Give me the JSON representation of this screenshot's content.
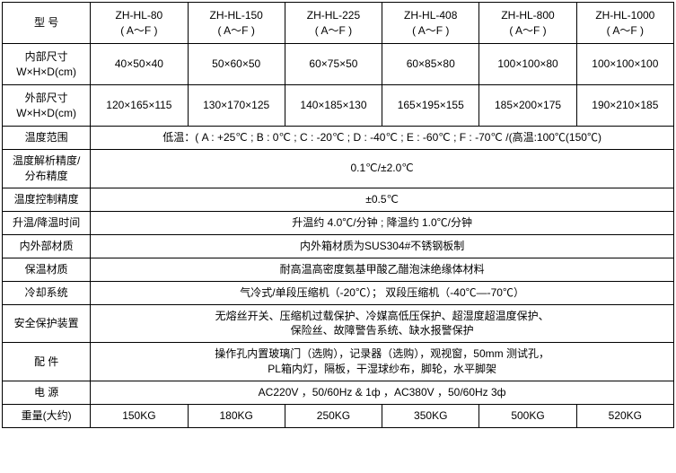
{
  "header": {
    "label": "型 号",
    "models": [
      {
        "name": "ZH-HL-80",
        "suffix": "( A～F )"
      },
      {
        "name": "ZH-HL-150",
        "suffix": "( A～F )"
      },
      {
        "name": "ZH-HL-225",
        "suffix": "( A～F )"
      },
      {
        "name": "ZH-HL-408",
        "suffix": "( A～F )"
      },
      {
        "name": "ZH-HL-800",
        "suffix": "( A～F )"
      },
      {
        "name": "ZH-HL-1000",
        "suffix": "( A～F )"
      }
    ]
  },
  "rows": {
    "inner_size": {
      "label1": "内部尺寸",
      "label2": "W×H×D(cm)",
      "values": [
        "40×50×40",
        "50×60×50",
        "60×75×50",
        "60×85×80",
        "100×100×80",
        "100×100×100"
      ]
    },
    "outer_size": {
      "label1": "外部尺寸",
      "label2": "W×H×D(cm)",
      "values": [
        "120×165×115",
        "130×170×125",
        "140×185×130",
        "165×195×155",
        "185×200×175",
        "190×210×185"
      ]
    },
    "temp_range": {
      "label": "温度范围",
      "value": "低温：( A : +25℃ ;   B : 0℃ ; C : -20℃ ;   D : -40℃ ; E : -60℃ ; F : -70℃   /(高温:100℃(150℃)"
    },
    "temp_resolution": {
      "label1": "温度解析精度/",
      "label2": "分布精度",
      "value": "0.1℃/±2.0℃"
    },
    "temp_control": {
      "label": "温度控制精度",
      "value": "±0.5℃"
    },
    "heating_cooling": {
      "label": "升温/降温时间",
      "value": "升温约 4.0℃/分钟   ; 降温约 1.0℃/分钟"
    },
    "material_inout": {
      "label": "内外部材质",
      "value": "内外箱材质为SUS304#不锈钢板制"
    },
    "insulation": {
      "label": "保温材质",
      "value": "耐高温高密度氨基甲酸乙醋泡沫绝缘体材料"
    },
    "cooling_system": {
      "label": "冷却系统",
      "value": "气冷式/单段压缩机（-20℃）；  双段压缩机（-40℃—-70℃）"
    },
    "safety": {
      "label": "安全保护装置",
      "line1": "无熔丝开关、压缩机过载保护、冷媒高低压保护、超湿度超温度保护、",
      "line2": "保险丝、故障警告系统、缺水报警保护"
    },
    "accessories": {
      "label": "配 件",
      "line1": "操作孔内置玻璃门（选购），记录器（选购），观视窗，50mm 测试孔，",
      "line2": "PL箱内灯，隔板，干湿球纱布，脚轮，水平脚架"
    },
    "power": {
      "label": "电 源",
      "value": "AC220V  ，50/60Hz & 1ф  ，AC380V  ，50/60Hz 3ф"
    },
    "weight": {
      "label": "重量(大约)",
      "values": [
        "150KG",
        "180KG",
        "250KG",
        "350KG",
        "500KG",
        "520KG"
      ]
    }
  }
}
